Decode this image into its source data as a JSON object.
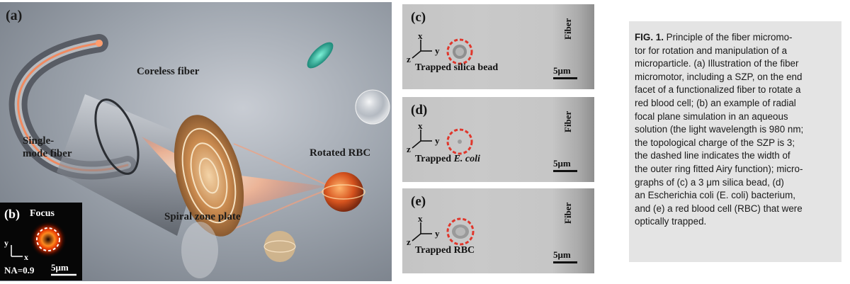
{
  "figure": {
    "panel_a": {
      "letter": "(a)",
      "labels": {
        "coreless_fiber": "Coreless fiber",
        "single_mode_line1": "Single-",
        "single_mode_line2": "mode fiber",
        "rotated_rbc": "Rotated  RBC",
        "spiral_zone_plate": "Spiral zone plate"
      },
      "inset_b": {
        "letter": "(b)",
        "focus": "Focus",
        "na": "NA=0.9",
        "scale": "5μm",
        "axis_y": "y",
        "axis_x": "x"
      }
    },
    "micrographs": [
      {
        "letter": "(c)",
        "fiber": "Fiber",
        "scale": "5μm",
        "caption": "Trapped  silica bead",
        "caption_italic": "",
        "axes": {
          "x": "x",
          "y": "y",
          "z": "z"
        }
      },
      {
        "letter": "(d)",
        "fiber": "Fiber",
        "scale": "5μm",
        "caption": "Trapped ",
        "caption_italic": "E. coli",
        "axes": {
          "x": "x",
          "y": "y",
          "z": "z"
        }
      },
      {
        "letter": "(e)",
        "fiber": "Fiber",
        "scale": "5μm",
        "caption": "Trapped RBC",
        "caption_italic": "",
        "axes": {
          "x": "x",
          "y": "y",
          "z": "z"
        }
      }
    ],
    "caption": {
      "label": "FIG. 1.",
      "lines": [
        " Principle of the fiber micromo-",
        "tor for rotation and manipulation of a",
        "microparticle. (a) Illustration of the fiber",
        "micromotor, including a SZP, on the end",
        "facet of a functionalized fiber to rotate a",
        "red blood cell; (b) an example of radial",
        "focal plane simulation in an aqueous",
        "solution (the light wavelength is 980 nm;",
        "the topological charge of the SZP is 3;",
        "the dashed line indicates the width of",
        "the outer ring fitted Airy function); micro-",
        "graphs of (c) a 3 μm silica bead, (d)",
        "an Escherichia coli (E. coli) bacterium,",
        "and (e) a red blood cell (RBC) that were",
        "optically trapped."
      ]
    }
  }
}
